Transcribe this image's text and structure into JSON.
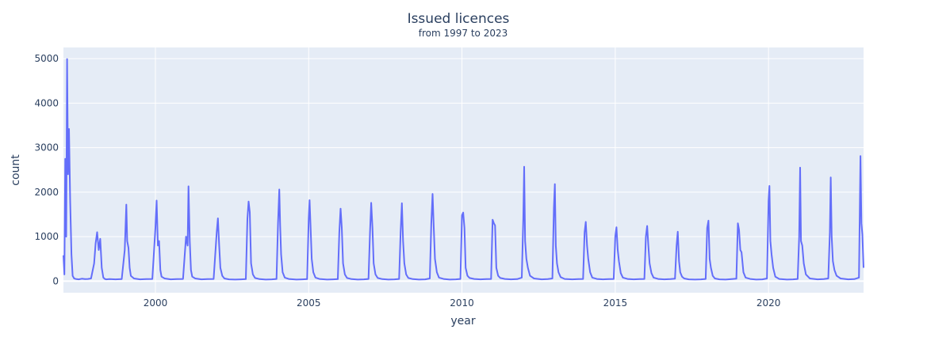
{
  "chart_data": {
    "type": "line",
    "title": "Issued licences",
    "subtitle": "from 1997 to 2023",
    "xlabel": "year",
    "ylabel": "count",
    "xlim": [
      1997.0,
      2023.1
    ],
    "ylim": [
      -260,
      5250
    ],
    "x_ticks": [
      2000,
      2005,
      2010,
      2015,
      2020
    ],
    "y_ticks": [
      0,
      1000,
      2000,
      3000,
      4000,
      5000
    ],
    "grid": true,
    "legend": "none",
    "colors": {
      "line": "#636efa",
      "plot_bg": "#e5ecf6",
      "grid": "#ffffff",
      "text": "#2a3f5f"
    },
    "series": [
      {
        "x": [
          1997.0,
          1997.03,
          1997.06,
          1997.09,
          1997.12,
          1997.15,
          1997.18,
          1997.22,
          1997.26,
          1997.3,
          1997.35,
          1997.4,
          1997.5,
          1997.6,
          1997.7,
          1997.8,
          1997.9,
          1998.0,
          1998.05,
          1998.1,
          1998.15,
          1998.2,
          1998.25,
          1998.3,
          1998.35,
          1998.4,
          1998.5,
          1998.7,
          1998.9,
          1999.0,
          1999.05,
          1999.08,
          1999.12,
          1999.16,
          1999.2,
          1999.3,
          1999.5,
          1999.7,
          1999.9,
          2000.0,
          2000.04,
          2000.08,
          2000.12,
          2000.16,
          2000.2,
          2000.3,
          2000.5,
          2000.7,
          2000.9,
          2001.0,
          2001.05,
          2001.08,
          2001.12,
          2001.16,
          2001.2,
          2001.3,
          2001.5,
          2001.7,
          2001.9,
          2002.0,
          2002.04,
          2002.08,
          2002.12,
          2002.18,
          2002.25,
          2002.4,
          2002.6,
          2002.8,
          2002.95,
          2003.0,
          2003.04,
          2003.08,
          2003.12,
          2003.18,
          2003.25,
          2003.4,
          2003.6,
          2003.8,
          2003.95,
          2004.0,
          2004.04,
          2004.07,
          2004.1,
          2004.15,
          2004.22,
          2004.35,
          2004.6,
          2004.8,
          2004.95,
          2005.0,
          2005.03,
          2005.06,
          2005.1,
          2005.15,
          2005.22,
          2005.35,
          2005.6,
          2005.8,
          2005.95,
          2006.0,
          2006.04,
          2006.08,
          2006.12,
          2006.18,
          2006.25,
          2006.4,
          2006.6,
          2006.8,
          2006.95,
          2007.0,
          2007.04,
          2007.08,
          2007.12,
          2007.18,
          2007.25,
          2007.4,
          2007.6,
          2007.8,
          2007.95,
          2008.0,
          2008.04,
          2008.08,
          2008.12,
          2008.18,
          2008.25,
          2008.4,
          2008.6,
          2008.8,
          2008.95,
          2009.0,
          2009.04,
          2009.08,
          2009.12,
          2009.18,
          2009.25,
          2009.4,
          2009.6,
          2009.8,
          2009.95,
          2010.0,
          2010.04,
          2010.08,
          2010.12,
          2010.18,
          2010.25,
          2010.4,
          2010.6,
          2010.8,
          2010.95,
          2011.0,
          2011.04,
          2011.08,
          2011.12,
          2011.18,
          2011.25,
          2011.4,
          2011.6,
          2011.8,
          2011.95,
          2012.0,
          2012.03,
          2012.06,
          2012.1,
          2012.15,
          2012.22,
          2012.35,
          2012.6,
          2012.8,
          2012.95,
          2013.0,
          2013.03,
          2013.06,
          2013.1,
          2013.15,
          2013.22,
          2013.35,
          2013.6,
          2013.8,
          2013.95,
          2014.0,
          2014.04,
          2014.08,
          2014.12,
          2014.18,
          2014.25,
          2014.4,
          2014.6,
          2014.8,
          2014.95,
          2015.0,
          2015.04,
          2015.08,
          2015.12,
          2015.18,
          2015.25,
          2015.4,
          2015.6,
          2015.8,
          2015.95,
          2016.0,
          2016.04,
          2016.08,
          2016.12,
          2016.18,
          2016.25,
          2016.4,
          2016.6,
          2016.8,
          2016.95,
          2017.0,
          2017.04,
          2017.08,
          2017.12,
          2017.18,
          2017.25,
          2017.4,
          2017.6,
          2017.8,
          2017.95,
          2018.0,
          2018.04,
          2018.08,
          2018.12,
          2018.18,
          2018.25,
          2018.4,
          2018.6,
          2018.8,
          2018.95,
          2019.0,
          2019.04,
          2019.08,
          2019.12,
          2019.18,
          2019.25,
          2019.4,
          2019.6,
          2019.8,
          2019.95,
          2020.0,
          2020.03,
          2020.06,
          2020.1,
          2020.15,
          2020.22,
          2020.35,
          2020.6,
          2020.8,
          2020.95,
          2021.0,
          2021.03,
          2021.06,
          2021.1,
          2021.15,
          2021.22,
          2021.35,
          2021.6,
          2021.8,
          2021.95,
          2022.0,
          2022.03,
          2022.06,
          2022.1,
          2022.15,
          2022.22,
          2022.35,
          2022.6,
          2022.8,
          2022.95,
          2023.0,
          2023.03,
          2023.06,
          2023.1
        ],
        "y": [
          580,
          150,
          2750,
          1000,
          4990,
          2400,
          3420,
          1800,
          600,
          120,
          60,
          50,
          40,
          55,
          45,
          50,
          60,
          400,
          850,
          1100,
          700,
          950,
          300,
          80,
          50,
          40,
          45,
          40,
          45,
          700,
          1720,
          900,
          750,
          300,
          120,
          60,
          40,
          45,
          50,
          1200,
          1810,
          800,
          900,
          250,
          100,
          60,
          40,
          45,
          50,
          1000,
          800,
          2130,
          900,
          250,
          100,
          60,
          40,
          45,
          50,
          1100,
          1410,
          800,
          300,
          120,
          60,
          40,
          35,
          40,
          45,
          1400,
          1790,
          1550,
          400,
          150,
          70,
          45,
          35,
          40,
          50,
          1300,
          2060,
          1250,
          600,
          200,
          80,
          50,
          35,
          40,
          45,
          1400,
          1820,
          1250,
          500,
          200,
          80,
          50,
          35,
          40,
          45,
          1100,
          1630,
          1200,
          400,
          150,
          70,
          45,
          35,
          40,
          50,
          1100,
          1760,
          1200,
          400,
          150,
          70,
          45,
          35,
          40,
          50,
          1100,
          1750,
          900,
          400,
          150,
          70,
          45,
          35,
          40,
          60,
          1300,
          1960,
          1200,
          500,
          200,
          80,
          50,
          35,
          40,
          50,
          1480,
          1540,
          1200,
          300,
          120,
          70,
          50,
          40,
          45,
          50,
          1380,
          1300,
          1250,
          300,
          120,
          70,
          50,
          40,
          45,
          80,
          1400,
          2570,
          900,
          500,
          300,
          120,
          60,
          40,
          45,
          60,
          1650,
          2180,
          800,
          400,
          200,
          90,
          50,
          40,
          45,
          50,
          1100,
          1330,
          800,
          500,
          200,
          80,
          50,
          40,
          45,
          50,
          1000,
          1210,
          700,
          450,
          180,
          80,
          50,
          40,
          45,
          50,
          1000,
          1240,
          800,
          400,
          180,
          80,
          50,
          40,
          45,
          55,
          800,
          1110,
          450,
          200,
          100,
          60,
          40,
          35,
          40,
          50,
          1200,
          1360,
          500,
          300,
          120,
          60,
          40,
          35,
          45,
          55,
          1300,
          1150,
          700,
          650,
          200,
          80,
          50,
          35,
          40,
          60,
          1800,
          2140,
          900,
          600,
          300,
          100,
          50,
          35,
          40,
          50,
          1000,
          2550,
          900,
          800,
          400,
          150,
          60,
          40,
          45,
          60,
          1100,
          2330,
          1000,
          450,
          250,
          120,
          60,
          40,
          45,
          80,
          2810,
          1300,
          1050,
          300
        ]
      }
    ]
  }
}
